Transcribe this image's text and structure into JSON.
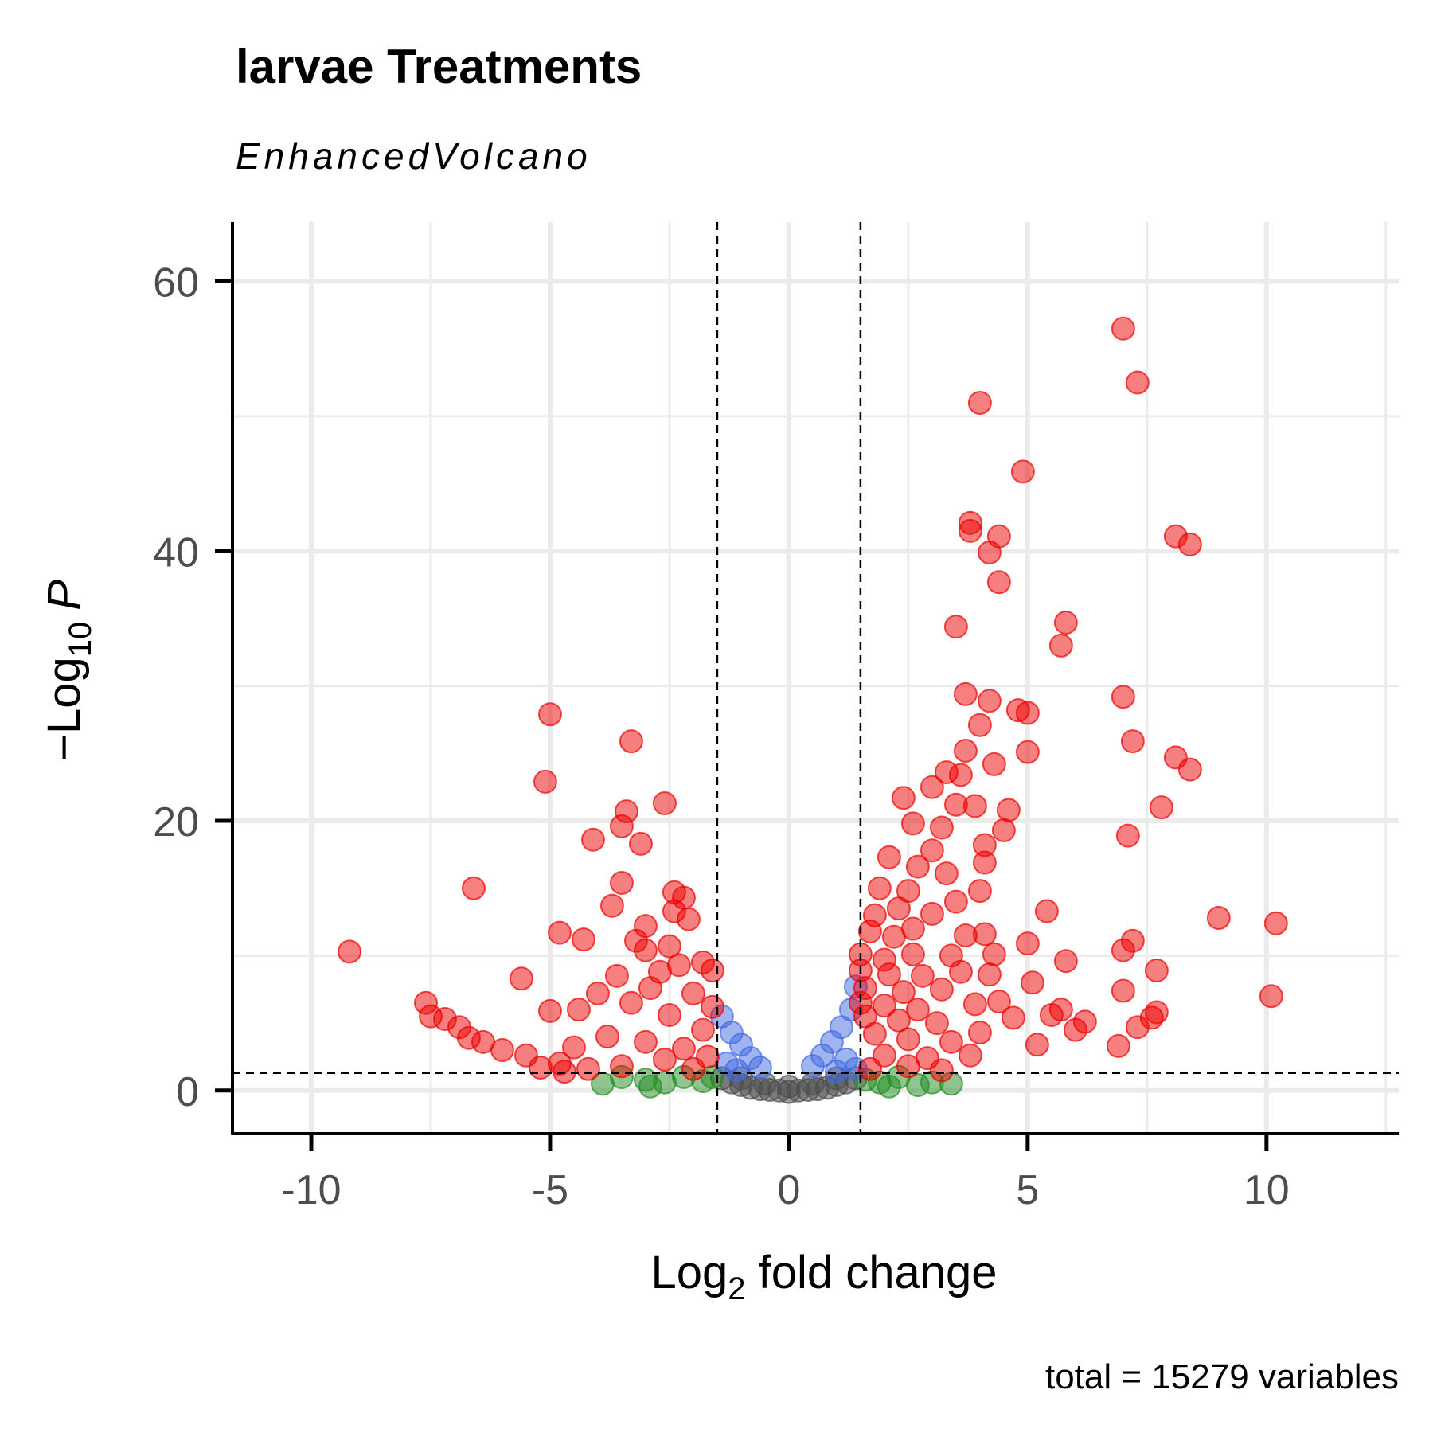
{
  "chart_data": {
    "type": "scatter",
    "title": "larvae Treatments",
    "subtitle": "EnhancedVolcano",
    "x_label": {
      "text": "Log",
      "sub": "2",
      "rest": " fold change"
    },
    "y_label": {
      "text": "−Log",
      "sub": "10",
      "rest": "P"
    },
    "caption": "total = 15279 variables",
    "xlim": [
      -11.65,
      12.77
    ],
    "ylim": [
      -3.2,
      64.4
    ],
    "xticks": [
      -10,
      -5,
      0,
      5,
      10
    ],
    "yticks": [
      0,
      20,
      40,
      60
    ],
    "x_minor_grid": [
      -7.5,
      -2.5,
      2.5,
      7.5,
      12.5
    ],
    "y_minor_grid": [
      10,
      30,
      50
    ],
    "grid": true,
    "cutoffs": {
      "x": [
        -1.5,
        1.5
      ],
      "y": 1.301
    },
    "alpha": 0.5,
    "series": [
      {
        "color": "#4d4d4d",
        "x": [
          -1.4,
          -1.2,
          -1.0,
          -0.8,
          -0.6,
          -0.4,
          -0.2,
          0,
          0.2,
          0.4,
          0.6,
          0.8,
          1.0,
          1.2,
          1.4,
          -0.5,
          0.5,
          -1.0,
          1.0,
          0
        ],
        "values": [
          0.9,
          0.6,
          0.4,
          0.2,
          0.1,
          0.05,
          0,
          -0.1,
          0,
          0.05,
          0.1,
          0.2,
          0.4,
          0.6,
          0.9,
          0.5,
          0.5,
          0.9,
          0.9,
          0.3
        ]
      },
      {
        "color": "#228b22",
        "x": [
          -3.9,
          -3.5,
          -3.0,
          -2.6,
          -2.2,
          -1.8,
          -1.6,
          1.6,
          1.9,
          2.3,
          2.7,
          3.0,
          3.4,
          -2.9,
          2.1
        ],
        "values": [
          0.5,
          1.0,
          0.8,
          0.6,
          1.0,
          0.7,
          1.0,
          0.8,
          0.6,
          1.0,
          0.4,
          0.6,
          0.5,
          0.3,
          0.3
        ]
      },
      {
        "color": "#4169e1",
        "x": [
          -1.4,
          -1.2,
          -1.0,
          -0.8,
          -0.6,
          -1.3,
          -1.1,
          1.4,
          1.3,
          1.1,
          0.9,
          0.7,
          0.5,
          1.2,
          1.4,
          1.0
        ],
        "values": [
          5.5,
          4.3,
          3.4,
          2.4,
          1.7,
          2.0,
          1.5,
          7.7,
          6.0,
          4.7,
          3.6,
          2.6,
          1.8,
          2.3,
          1.6,
          1.4
        ]
      },
      {
        "color": "#ee0000",
        "x": [
          7.0,
          7.3,
          4.0,
          4.9,
          3.8,
          3.8,
          4.4,
          8.1,
          8.4,
          4.2,
          4.4,
          3.5,
          5.8,
          5.7,
          3.7,
          4.2,
          7.0,
          4.8,
          5.0,
          4.0,
          7.2,
          3.7,
          5.0,
          8.1,
          8.4,
          4.3,
          3.3,
          3.6,
          2.4,
          3.0,
          3.5,
          4.6,
          7.8,
          3.9,
          2.6,
          3.2,
          4.5,
          7.1,
          2.1,
          3.0,
          4.1,
          2.7,
          3.3,
          4.1,
          1.9,
          2.5,
          3.5,
          4.0,
          1.8,
          2.3,
          3.0,
          5.4,
          9.0,
          10.2,
          1.7,
          2.2,
          2.6,
          3.7,
          4.1,
          5.0,
          7.2,
          7.0,
          1.5,
          2.0,
          2.6,
          3.4,
          4.3,
          5.8,
          7.7,
          1.5,
          2.1,
          2.8,
          3.6,
          4.2,
          5.1,
          1.6,
          2.4,
          3.2,
          7.0,
          10.1,
          1.5,
          2.0,
          2.7,
          3.9,
          4.4,
          1.6,
          2.3,
          3.1,
          4.7,
          5.5,
          5.7,
          6.2,
          7.3,
          7.6,
          7.7,
          1.8,
          2.5,
          3.4,
          4.0,
          5.2,
          6.0,
          6.9,
          2.0,
          2.9,
          3.8,
          1.7,
          2.5,
          3.2,
          -9.2,
          -7.6,
          -7.5,
          -7.2,
          -6.9,
          -6.6,
          -6.7,
          -6.4,
          -6.0,
          -5.6,
          -5.5,
          -5.0,
          -5.1,
          -5.0,
          -4.8,
          -4.8,
          -4.3,
          -4.1,
          -4.4,
          -4.0,
          -3.7,
          -3.6,
          -3.5,
          -3.5,
          -3.4,
          -3.3,
          -3.2,
          -3.1,
          -3.0,
          -3.0,
          -2.6,
          -2.4,
          -2.4,
          -2.2,
          -2.1,
          -2.5,
          -2.9,
          -2.7,
          -2.3,
          -1.8,
          -1.6,
          -2.0,
          -1.6,
          -3.3,
          -2.5,
          -1.8,
          -3.8,
          -3.0,
          -2.2,
          -4.5,
          -1.7,
          -2.6,
          -3.5,
          -4.2,
          -5.2,
          -4.7,
          -2.0
        ],
        "values": [
          56.5,
          52.5,
          51,
          45.9,
          42.1,
          41.5,
          41.1,
          41.1,
          40.5,
          39.9,
          37.7,
          34.4,
          34.7,
          33.0,
          29.4,
          28.9,
          29.2,
          28.2,
          28.0,
          27.1,
          25.9,
          25.2,
          25.1,
          24.7,
          23.8,
          24.2,
          23.6,
          23.4,
          21.7,
          22.5,
          21.2,
          20.8,
          21.0,
          21.1,
          19.8,
          19.5,
          19.3,
          18.9,
          17.3,
          17.8,
          18.2,
          16.6,
          16.1,
          16.9,
          15.0,
          14.8,
          14.0,
          14.8,
          13.0,
          13.5,
          13.1,
          13.3,
          12.8,
          12.4,
          11.8,
          11.4,
          12.0,
          11.5,
          11.6,
          10.9,
          11.1,
          10.4,
          10.1,
          9.7,
          10.1,
          10.0,
          10.1,
          9.6,
          8.9,
          8.9,
          8.6,
          8.5,
          8.8,
          8.6,
          8.0,
          7.6,
          7.3,
          7.5,
          7.4,
          7.0,
          6.5,
          6.3,
          6.0,
          6.4,
          6.6,
          5.5,
          5.2,
          5.0,
          5.4,
          5.6,
          6.0,
          5.1,
          4.7,
          5.4,
          5.8,
          4.2,
          3.8,
          3.6,
          4.3,
          3.4,
          4.5,
          3.3,
          2.6,
          2.4,
          2.6,
          1.6,
          1.8,
          1.5,
          10.3,
          6.5,
          5.5,
          5.3,
          4.7,
          15.0,
          3.9,
          3.6,
          3.0,
          8.3,
          2.6,
          27.9,
          22.9,
          5.9,
          2.0,
          11.7,
          11.2,
          18.6,
          6.0,
          7.2,
          13.7,
          8.5,
          15.4,
          19.6,
          20.7,
          25.9,
          11.1,
          18.3,
          12.2,
          10.4,
          21.3,
          14.7,
          13.3,
          14.3,
          12.7,
          10.7,
          7.6,
          8.8,
          9.3,
          9.5,
          8.9,
          7.2,
          6.2,
          6.5,
          5.6,
          4.5,
          4.0,
          3.6,
          3.1,
          3.2,
          2.5,
          2.3,
          1.8,
          1.6,
          1.7,
          1.4,
          1.6
        ]
      }
    ]
  }
}
